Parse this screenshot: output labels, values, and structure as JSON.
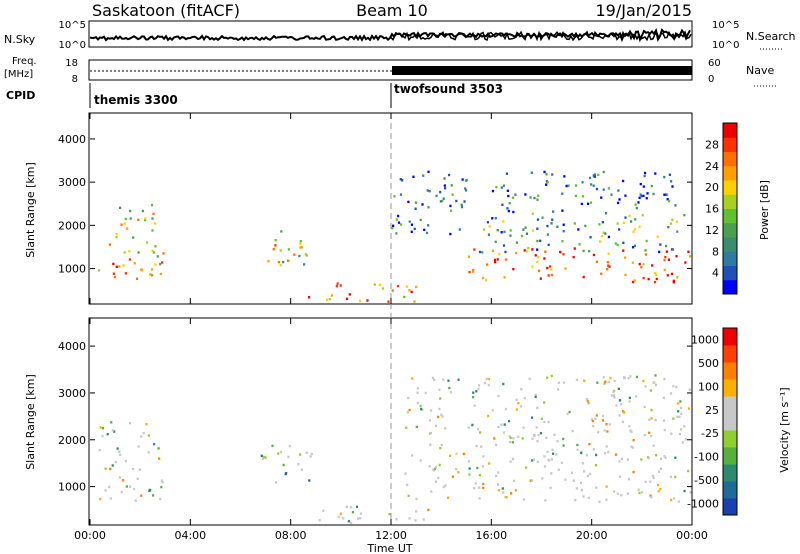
{
  "header": {
    "station": "Saskatoon (fitACF)",
    "beam": "Beam 10",
    "date": "19/Jan/2015"
  },
  "noise_panel": {
    "left_label": "N.Sky",
    "left_ticks": [
      "10^5",
      "10^0"
    ],
    "right_ticks": [
      "10^5",
      "10^0"
    ],
    "right_label": "N.Search"
  },
  "freq_panel": {
    "left_label_1": "Freq.",
    "left_label_2": "[MHz]",
    "left_ticks": [
      "18",
      "8"
    ],
    "right_ticks": [
      "60",
      "0"
    ],
    "right_label": "Nave"
  },
  "cpid": {
    "label": "CPID",
    "programs": [
      {
        "name": "themis 3300",
        "start_hour": 0
      },
      {
        "name": "twofsound 3503",
        "start_hour": 12
      }
    ]
  },
  "x_axis": {
    "label": "Time UT",
    "range_hours": [
      0,
      24
    ],
    "ticks": [
      "00:00",
      "04:00",
      "08:00",
      "12:00",
      "16:00",
      "20:00",
      "00:00"
    ],
    "tick_hours": [
      0,
      4,
      8,
      12,
      16,
      20,
      24
    ]
  },
  "chart_data": [
    {
      "type": "heatmap",
      "panel": "power",
      "ylabel": "Slant Range [km]",
      "ylim": [
        180,
        4600
      ],
      "yticks": [
        1000,
        2000,
        3000,
        4000
      ],
      "colorbar": {
        "label": "Power [dB]",
        "range": [
          0,
          32
        ],
        "ticks": [
          4,
          8,
          12,
          16,
          20,
          24,
          28
        ],
        "colors": [
          "#0000ff",
          "#1f4fb8",
          "#2f7aa0",
          "#3c8c6e",
          "#4aa050",
          "#5fc030",
          "#a8d020",
          "#ffd000",
          "#ffa000",
          "#ff7000",
          "#ff3000",
          "#ee0000"
        ]
      },
      "regions": [
        {
          "t": [
            0.3,
            2.9
          ],
          "r": [
            700,
            1700
          ],
          "level": 0.7
        },
        {
          "t": [
            1.0,
            2.8
          ],
          "r": [
            1500,
            2500
          ],
          "level": 0.5
        },
        {
          "t": [
            6.8,
            9.0
          ],
          "r": [
            1100,
            1900
          ],
          "level": 0.55
        },
        {
          "t": [
            8.5,
            13.0
          ],
          "r": [
            250,
            700
          ],
          "level": 0.75
        },
        {
          "t": [
            12.0,
            15.0
          ],
          "r": [
            1800,
            3400
          ],
          "level": 0.2
        },
        {
          "t": [
            15.0,
            23.9
          ],
          "r": [
            700,
            1500
          ],
          "level": 0.85
        },
        {
          "t": [
            15.5,
            23.9
          ],
          "r": [
            1400,
            2300
          ],
          "level": 0.35
        },
        {
          "t": [
            16.0,
            23.5
          ],
          "r": [
            2300,
            3300
          ],
          "level": 0.2
        }
      ]
    },
    {
      "type": "heatmap",
      "panel": "velocity",
      "ylabel": "Slant Range [km]",
      "ylim": [
        180,
        4600
      ],
      "yticks": [
        1000,
        2000,
        3000,
        4000
      ],
      "colorbar": {
        "label": "Velocity [m s⁻¹]",
        "range": [
          -1200,
          1200
        ],
        "ticks": [
          "1000",
          "500",
          "100",
          "25",
          "-25",
          "-100",
          "-500",
          "-1000"
        ],
        "colors": [
          "#1a3fb0",
          "#1f6a9a",
          "#2e8a6e",
          "#55b040",
          "#8fd030",
          "#c8c8c8",
          "#c8c8c8",
          "#ffb000",
          "#ff8000",
          "#ff4000",
          "#ee0000"
        ]
      },
      "regions": [
        {
          "t": [
            0.3,
            2.9
          ],
          "r": [
            700,
            2400
          ],
          "level": 0.5
        },
        {
          "t": [
            6.8,
            9.0
          ],
          "r": [
            1100,
            1900
          ],
          "level": 0.3
        },
        {
          "t": [
            8.5,
            14.0
          ],
          "r": [
            250,
            600
          ],
          "level": 0.55
        },
        {
          "t": [
            12.5,
            23.9
          ],
          "r": [
            700,
            3400
          ],
          "level": 0.5
        }
      ]
    }
  ]
}
